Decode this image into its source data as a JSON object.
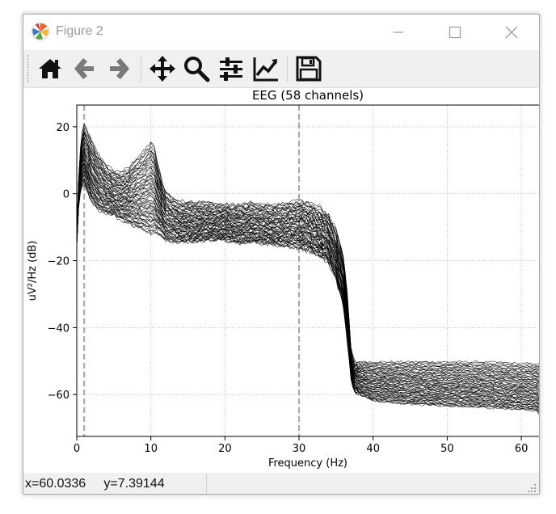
{
  "window": {
    "title": "Figure 2",
    "app_icon": "matplotlib-logo-icon"
  },
  "window_controls": [
    "minimize-icon",
    "maximize-icon",
    "close-icon"
  ],
  "toolbar": {
    "tools": [
      {
        "name": "home",
        "icon": "home-icon"
      },
      {
        "name": "back",
        "icon": "arrow-left-icon"
      },
      {
        "name": "forward",
        "icon": "arrow-right-icon"
      },
      {
        "name": "pan",
        "icon": "move-icon"
      },
      {
        "name": "zoom",
        "icon": "magnifier-icon"
      },
      {
        "name": "subplots",
        "icon": "sliders-icon"
      },
      {
        "name": "edit-axis",
        "icon": "line-chart-icon"
      },
      {
        "name": "save",
        "icon": "floppy-disk-icon"
      }
    ]
  },
  "status": {
    "coords": "x=60.0336     y=7.39144"
  },
  "chart_data": {
    "type": "line",
    "title": "EEG (58 channels)",
    "xlabel": "Frequency (Hz)",
    "ylabel": "uV²/Hz (dB)",
    "xlim": [
      0,
      62.5
    ],
    "ylim": [
      -72.5,
      26.5
    ],
    "xticks": [
      0,
      10,
      20,
      30,
      40,
      50,
      60
    ],
    "yticks": [
      20,
      0,
      -20,
      -40,
      -60
    ],
    "xtick_labels": [
      "0",
      "10",
      "20",
      "30",
      "40",
      "50",
      "60"
    ],
    "ytick_labels": [
      "20",
      "0",
      "−20",
      "−40",
      "−60"
    ],
    "grid": true,
    "vlines": [
      1,
      30
    ],
    "series_count": 58,
    "profile": {
      "x": [
        0,
        0.3,
        0.6,
        1,
        1.5,
        2,
        3,
        4,
        5,
        6,
        7,
        8,
        9,
        10,
        10.5,
        11,
        11.5,
        12,
        13,
        14,
        16,
        18,
        20,
        22,
        23.5,
        25,
        27,
        29,
        31,
        33,
        34,
        35,
        36,
        36.6,
        37,
        37.4,
        38,
        40,
        45,
        50,
        55,
        60,
        62,
        62.5
      ],
      "upper": [
        -10,
        8,
        17,
        21,
        19,
        16,
        12,
        9,
        7,
        7,
        8,
        11,
        13,
        16,
        14,
        9,
        4,
        1,
        -1,
        -2,
        -2,
        -2.5,
        -3,
        -3,
        -2.5,
        -3,
        -3,
        -2,
        -2,
        -4,
        -6,
        -10,
        -18,
        -32,
        -46,
        -50,
        -50,
        -50,
        -50,
        -50,
        -50,
        -50.5,
        -50.5,
        -51
      ],
      "lower": [
        -16,
        -2,
        2,
        3,
        0,
        -2.5,
        -5,
        -6,
        -6.5,
        -8,
        -9,
        -10,
        -11,
        -12,
        -12,
        -12.5,
        -13,
        -14,
        -14.5,
        -14.5,
        -14.5,
        -14,
        -14,
        -15,
        -14.5,
        -15,
        -15.5,
        -16,
        -17,
        -19,
        -21,
        -26,
        -34,
        -46,
        -55,
        -59,
        -60,
        -62,
        -63,
        -63.5,
        -64,
        -64.5,
        -65,
        -66
      ]
    }
  }
}
